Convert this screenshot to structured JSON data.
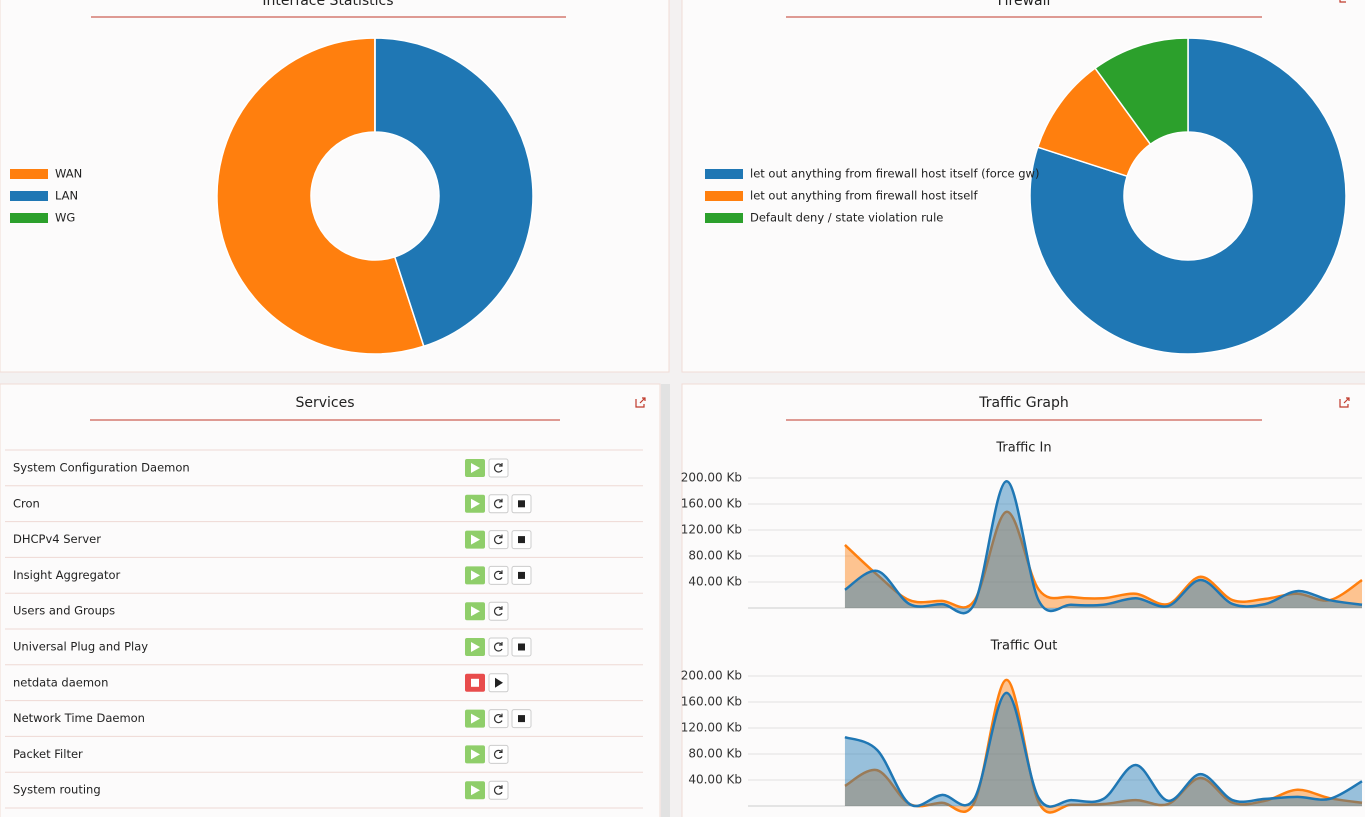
{
  "interface_statistics": {
    "title": "Interface Statistics",
    "chart": {
      "type": "pie",
      "categories": [
        "WAN",
        "LAN",
        "WG"
      ],
      "values": [
        55,
        45,
        0
      ],
      "colors": [
        "#ff7f0e",
        "#1f77b4",
        "#2ca02c"
      ]
    }
  },
  "firewall": {
    "title": "Firewall",
    "chart": {
      "type": "pie",
      "categories": [
        "let out anything from firewall host itself (force gw)",
        "let out anything from firewall host itself",
        "Default deny / state violation rule"
      ],
      "values": [
        80,
        10,
        10
      ],
      "colors": [
        "#1f77b4",
        "#ff7f0e",
        "#2ca02c"
      ]
    }
  },
  "services": {
    "title": "Services",
    "rows": [
      {
        "name": "System Configuration Daemon",
        "status": "running",
        "stoppable": false
      },
      {
        "name": "Cron",
        "status": "running",
        "stoppable": true
      },
      {
        "name": "DHCPv4 Server",
        "status": "running",
        "stoppable": true
      },
      {
        "name": "Insight Aggregator",
        "status": "running",
        "stoppable": true
      },
      {
        "name": "Users and Groups",
        "status": "running",
        "stoppable": false
      },
      {
        "name": "Universal Plug and Play",
        "status": "running",
        "stoppable": true
      },
      {
        "name": "netdata daemon",
        "status": "stopped",
        "stoppable": false
      },
      {
        "name": "Network Time Daemon",
        "status": "running",
        "stoppable": true
      },
      {
        "name": "Packet Filter",
        "status": "running",
        "stoppable": false
      },
      {
        "name": "System routing",
        "status": "running",
        "stoppable": false
      }
    ]
  },
  "traffic_graph": {
    "title": "Traffic Graph",
    "charts": [
      {
        "type": "area",
        "title": "Traffic In",
        "ylim": [
          0,
          200
        ],
        "yticks": [
          {
            "value": 40,
            "label": "40.00 Kb"
          },
          {
            "value": 80,
            "label": "80.00 Kb"
          },
          {
            "value": 120,
            "label": "120.00 Kb"
          },
          {
            "value": 160,
            "label": "160.00 Kb"
          },
          {
            "value": 200,
            "label": "200.00 Kb"
          }
        ],
        "series": [
          {
            "color": "#ff7f0e",
            "values": [
              null,
              null,
              null,
              97,
              51,
              12,
              11,
              11,
              148,
              28,
              17,
              15,
              22,
              6,
              48,
              12,
              14,
              22,
              12,
              43
            ]
          },
          {
            "color": "#1f77b4",
            "values": [
              null,
              null,
              null,
              28,
              57,
              6,
              6,
              6,
              195,
              11,
              5,
              5,
              15,
              3,
              43,
              6,
              6,
              26,
              12,
              5
            ]
          }
        ]
      },
      {
        "type": "area",
        "title": "Traffic Out",
        "ylim": [
          0,
          200
        ],
        "yticks": [
          {
            "value": 40,
            "label": "40.00 Kb"
          },
          {
            "value": 80,
            "label": "80.00 Kb"
          },
          {
            "value": 120,
            "label": "120.00 Kb"
          },
          {
            "value": 160,
            "label": "160.00 Kb"
          },
          {
            "value": 200,
            "label": "200.00 Kb"
          }
        ],
        "series": [
          {
            "color": "#ff7f0e",
            "values": [
              null,
              null,
              null,
              31,
              55,
              3,
              5,
              5,
              194,
              5,
              2,
              3,
              9,
              3,
              43,
              5,
              8,
              25,
              12,
              5
            ]
          },
          {
            "color": "#1f77b4",
            "values": [
              null,
              null,
              null,
              106,
              86,
              3,
              17,
              11,
              174,
              12,
              9,
              11,
              63,
              8,
              49,
              9,
              11,
              14,
              11,
              38
            ]
          }
        ]
      }
    ]
  }
}
